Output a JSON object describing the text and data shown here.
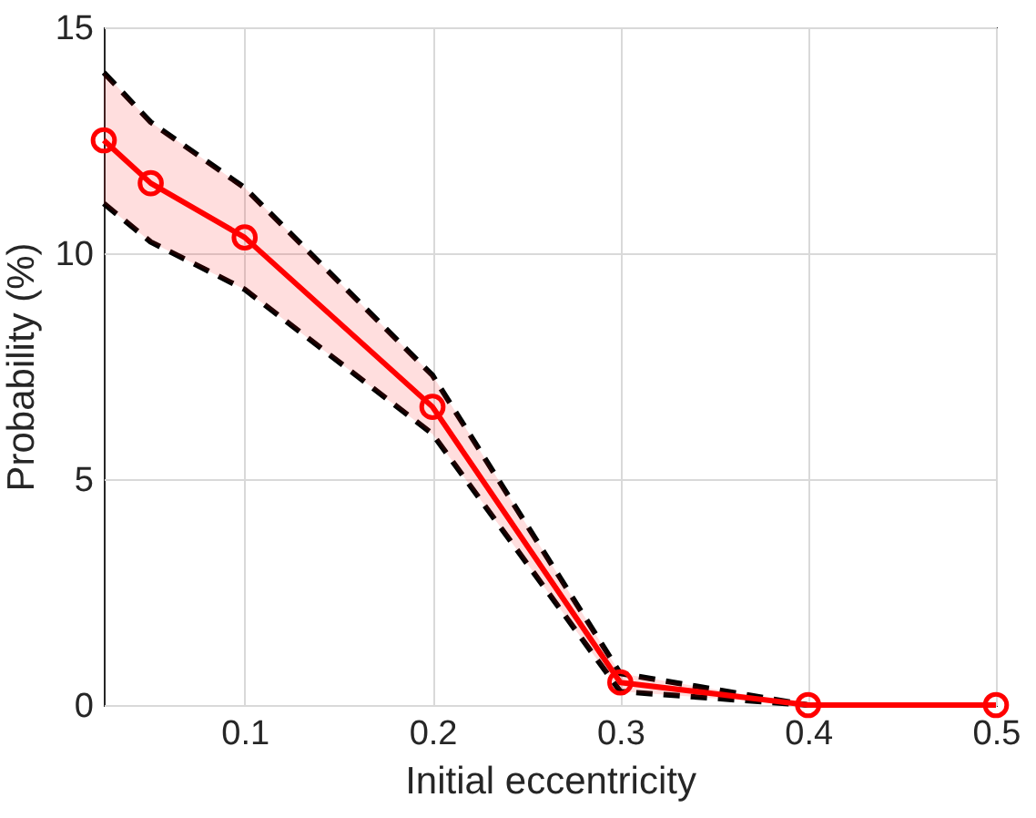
{
  "chart_data": {
    "type": "line",
    "xlabel": "Initial eccentricity",
    "ylabel": "Probability (%)",
    "x": [
      0.025,
      0.05,
      0.1,
      0.2,
      0.3,
      0.4,
      0.5
    ],
    "series": [
      {
        "color": "#000000",
        "values": [
          11.1,
          10.25,
          9.2,
          6.0,
          0.3,
          0,
          0
        ],
        "line_style": "dashed",
        "marker": "none"
      },
      {
        "color": "#000000",
        "values": [
          14.0,
          12.9,
          11.45,
          7.3,
          0.7,
          0,
          0
        ],
        "line_style": "dashed",
        "marker": "none"
      },
      {
        "color": "#ff0000",
        "values": [
          12.5,
          11.55,
          10.35,
          6.6,
          0.5,
          0,
          0
        ],
        "lower": [
          11.1,
          10.25,
          9.2,
          6.0,
          0.3,
          0,
          0
        ],
        "upper": [
          14.0,
          12.9,
          11.45,
          7.3,
          0.7,
          0,
          0
        ]
      }
    ],
    "xlim": [
      0.025,
      0.5
    ],
    "xticks": [
      0.1,
      0.2,
      0.3,
      0.4,
      0.5
    ],
    "ylim": [
      0,
      15
    ],
    "yticks": [
      0,
      5,
      10,
      15
    ],
    "grid": true,
    "marker": "circle",
    "line_style": "solid"
  }
}
